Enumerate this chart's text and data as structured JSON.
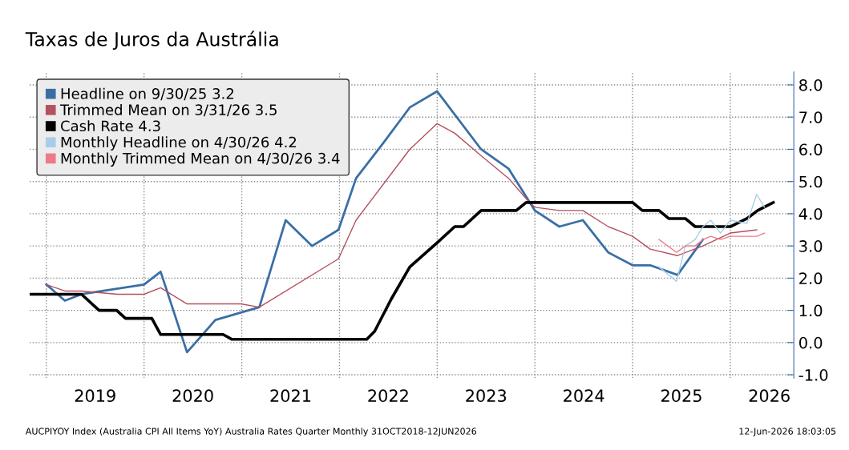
{
  "chart_data": {
    "type": "line",
    "title": "Taxas de Juros da Austrália",
    "xlim": [
      2018.83,
      2026.65
    ],
    "xticks": [
      {
        "value": 2019,
        "label": null
      },
      {
        "value": 2019.5,
        "label": "2019"
      },
      {
        "value": 2020,
        "label": null
      },
      {
        "value": 2020.5,
        "label": "2020"
      },
      {
        "value": 2021,
        "label": null
      },
      {
        "value": 2021.5,
        "label": "2021"
      },
      {
        "value": 2022,
        "label": null
      },
      {
        "value": 2022.5,
        "label": "2022"
      },
      {
        "value": 2023,
        "label": null
      },
      {
        "value": 2023.5,
        "label": "2023"
      },
      {
        "value": 2024,
        "label": null
      },
      {
        "value": 2024.5,
        "label": "2024"
      },
      {
        "value": 2025,
        "label": null
      },
      {
        "value": 2025.5,
        "label": "2025"
      },
      {
        "value": 2026,
        "label": null
      },
      {
        "value": 2026.4,
        "label": "2026"
      }
    ],
    "ylim": [
      -1.1,
      8.4
    ],
    "yticks": [
      {
        "value": -1,
        "label": "-1.0"
      },
      {
        "value": 0,
        "label": "0.0"
      },
      {
        "value": 1,
        "label": "1.0"
      },
      {
        "value": 2,
        "label": "2.0"
      },
      {
        "value": 3,
        "label": "3.0"
      },
      {
        "value": 4,
        "label": "4.0"
      },
      {
        "value": 5,
        "label": "5.0"
      },
      {
        "value": 6,
        "label": "6.0"
      },
      {
        "value": 7,
        "label": "7.0"
      },
      {
        "value": 8,
        "label": "8.0"
      }
    ],
    "grid": true,
    "legend": "top left",
    "marker": "none",
    "line_style": "solid",
    "annotations": [
      "AUCPIYOY Index (Australia CPI All Items YoY) Australia Rates Quarter Monthly 31OCT2018-12JUN2026",
      "12-Jun-2026 18:03:05"
    ],
    "series": [
      {
        "name": "Headline on 9/30/25 3.2",
        "color": "#3a6fa5",
        "x": [
          2019.0,
          2019.19,
          2019.36,
          2020.0,
          2020.17,
          2020.44,
          2020.73,
          2021.18,
          2021.45,
          2021.72,
          2021.99,
          2022.17,
          2022.45,
          2022.72,
          2023.0,
          2023.45,
          2023.73,
          2024.0,
          2024.25,
          2024.49,
          2024.75,
          2025.0,
          2025.18,
          2025.46,
          2025.72
        ],
        "values": [
          1.8,
          1.3,
          1.5,
          1.8,
          2.2,
          -0.3,
          0.7,
          1.1,
          3.8,
          3.0,
          3.5,
          5.1,
          6.2,
          7.3,
          7.8,
          6.0,
          5.4,
          4.1,
          3.6,
          3.8,
          2.8,
          2.4,
          2.4,
          2.1,
          3.2
        ]
      },
      {
        "name": "Trimmed Mean on 3/31/26 3.5",
        "color": "#b4505f",
        "x": [
          2019.0,
          2019.19,
          2019.36,
          2019.73,
          2020.0,
          2020.17,
          2020.44,
          2020.99,
          2021.18,
          2021.99,
          2022.17,
          2022.72,
          2023.0,
          2023.18,
          2023.45,
          2023.73,
          2023.93,
          2024.0,
          2024.25,
          2024.49,
          2024.75,
          2025.0,
          2025.18,
          2025.46,
          2025.72,
          2026.0,
          2026.27
        ],
        "values": [
          1.8,
          1.6,
          1.6,
          1.5,
          1.5,
          1.7,
          1.2,
          1.2,
          1.1,
          2.6,
          3.8,
          6.0,
          6.8,
          6.5,
          5.8,
          5.1,
          4.4,
          4.2,
          4.1,
          4.1,
          3.6,
          3.3,
          2.9,
          2.7,
          3.0,
          3.4,
          3.5
        ]
      },
      {
        "name": "Cash Rate 4.3",
        "color": "#000000",
        "x": [
          2018.83,
          2019.36,
          2019.54,
          2019.72,
          2019.81,
          2020.08,
          2020.17,
          2020.81,
          2020.9,
          2022.28,
          2022.36,
          2022.53,
          2022.72,
          2023.0,
          2023.18,
          2023.27,
          2023.45,
          2023.81,
          2023.91,
          2025.0,
          2025.1,
          2025.27,
          2025.37,
          2025.54,
          2025.64,
          2026.0,
          2026.17,
          2026.28,
          2026.44
        ],
        "values": [
          1.5,
          1.5,
          1.0,
          1.0,
          0.75,
          0.75,
          0.25,
          0.25,
          0.1,
          0.1,
          0.35,
          1.35,
          2.35,
          3.1,
          3.6,
          3.6,
          4.1,
          4.1,
          4.35,
          4.35,
          4.1,
          4.1,
          3.85,
          3.85,
          3.6,
          3.6,
          3.85,
          4.1,
          4.35
        ]
      },
      {
        "name": "Monthly Headline on 4/30/26 4.2",
        "color": "#a9cde8",
        "x": [
          2025.27,
          2025.45,
          2025.54,
          2025.64,
          2025.72,
          2025.8,
          2025.9,
          2026.0,
          2026.17,
          2026.27,
          2026.35
        ],
        "values": [
          2.35,
          1.9,
          3.0,
          3.2,
          3.6,
          3.8,
          3.4,
          3.8,
          3.7,
          4.6,
          4.2
        ]
      },
      {
        "name": "Monthly Trimmed Mean on 4/30/26 3.4",
        "color": "#ee7a88",
        "x": [
          2025.27,
          2025.45,
          2025.54,
          2025.64,
          2025.72,
          2025.8,
          2025.9,
          2026.0,
          2026.27,
          2026.35
        ],
        "values": [
          3.2,
          2.8,
          3.0,
          3.0,
          3.2,
          3.3,
          3.2,
          3.3,
          3.3,
          3.4
        ]
      }
    ]
  }
}
